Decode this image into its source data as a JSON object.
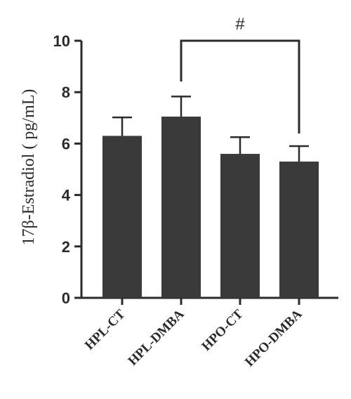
{
  "chart_data": {
    "type": "bar",
    "categories": [
      "HPL-CT",
      "HPL-DMBA",
      "HPO-CT",
      "HPO-DMBA"
    ],
    "values": [
      6.3,
      7.05,
      5.6,
      5.3
    ],
    "errors": [
      0.72,
      0.78,
      0.65,
      0.6
    ],
    "title": "",
    "xlabel": "",
    "ylabel": "17β-Estradiol ( pg/mL)",
    "ylim": [
      0,
      10
    ],
    "yticks": [
      0,
      2,
      4,
      6,
      8,
      10
    ],
    "grid": false,
    "bar_color": "#3a3a3b",
    "annotations": [
      {
        "text": "#",
        "from": "HPL-DMBA",
        "to": "HPO-DMBA"
      }
    ]
  }
}
